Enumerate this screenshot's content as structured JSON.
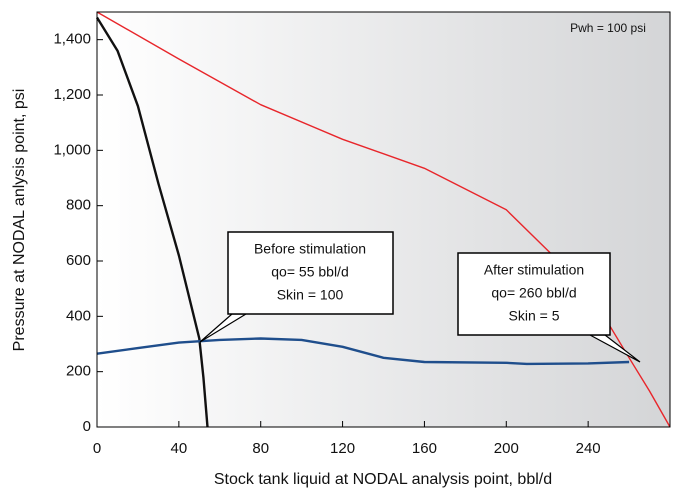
{
  "chart_data": {
    "type": "line",
    "xlabel": "Stock tank liquid at NODAL analysis point, bbl/d",
    "ylabel": "Pressure at NODAL anlysis point, psi",
    "xlim": [
      0,
      280
    ],
    "ylim": [
      0,
      1500
    ],
    "xticks": [
      0,
      40,
      80,
      120,
      160,
      200,
      240
    ],
    "yticks": [
      0,
      200,
      400,
      600,
      800,
      {
        "value": 1000,
        "label": "1,000"
      },
      {
        "value": 1200,
        "label": "1,200"
      },
      {
        "value": 1400,
        "label": "1,400"
      }
    ],
    "series": [
      {
        "color": "#e8262b",
        "x": [
          0,
          40,
          80,
          120,
          160,
          200,
          240,
          260,
          270,
          280
        ],
        "values": [
          1500,
          1330,
          1165,
          1040,
          935,
          785,
          495,
          250,
          130,
          0
        ]
      },
      {
        "color": "#111111",
        "x": [
          0,
          10,
          20,
          30,
          40,
          50,
          52,
          54
        ],
        "values": [
          1480,
          1360,
          1160,
          880,
          620,
          320,
          180,
          0
        ]
      },
      {
        "color": "#1f4e8c",
        "x": [
          0,
          20,
          40,
          60,
          80,
          100,
          120,
          140,
          160,
          200,
          210,
          240,
          260
        ],
        "values": [
          265,
          285,
          305,
          315,
          320,
          315,
          290,
          250,
          235,
          232,
          228,
          230,
          235
        ]
      }
    ],
    "annotations": [
      {
        "lines": [
          "Before stimulation",
          "qo= 55 bbl/d",
          "Skin = 100"
        ]
      },
      {
        "lines": [
          "After stimulation",
          "qo= 260 bbl/d",
          "Skin = 5"
        ]
      },
      {
        "lines": [
          "Pwh = 100 psi"
        ]
      }
    ]
  }
}
